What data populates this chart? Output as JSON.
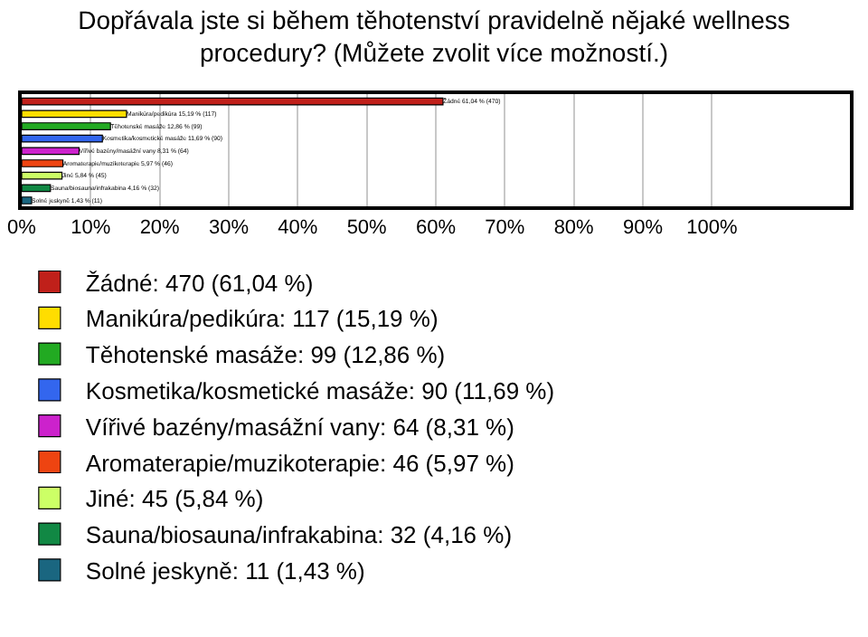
{
  "chart_data": {
    "type": "bar",
    "orientation": "horizontal",
    "title": "Dopřávala jste si během těhotenství pravidelně nějaké wellness\nprocedury? (Můžete zvolit více možností.)",
    "categories": [
      null,
      null,
      null,
      null,
      null,
      null,
      null,
      null,
      null
    ],
    "series": [
      {
        "name": "Žádné: 470 (61,04 %)",
        "color": "#c0201a",
        "values": [
          61.04,
          null,
          null,
          null,
          null,
          null,
          null,
          null,
          null
        ],
        "value_labels": [
          "Žádné 61,04 % (470)",
          null,
          null,
          null,
          null,
          null,
          null,
          null,
          null
        ]
      },
      {
        "name": "Manikúra/pedikúra: 117 (15,19 %)",
        "color": "#ffdd00",
        "values": [
          null,
          15.19,
          null,
          null,
          null,
          null,
          null,
          null,
          null
        ],
        "value_labels": [
          null,
          "Manikúra/pedikúra 15,19 % (117)",
          null,
          null,
          null,
          null,
          null,
          null,
          null
        ]
      },
      {
        "name": "Těhotenské masáže: 99 (12,86 %)",
        "color": "#22aa22",
        "values": [
          null,
          null,
          12.86,
          null,
          null,
          null,
          null,
          null,
          null
        ],
        "value_labels": [
          null,
          null,
          "Těhotenské masáže 12,86 % (99)",
          null,
          null,
          null,
          null,
          null,
          null
        ]
      },
      {
        "name": "Kosmetika/kosmetické masáže: 90 (11,69 %)",
        "color": "#3366ee",
        "values": [
          null,
          null,
          null,
          11.69,
          null,
          null,
          null,
          null,
          null
        ],
        "value_labels": [
          null,
          null,
          null,
          "Kosmetika/kosmetické masáže 11,69 % (90)",
          null,
          null,
          null,
          null,
          null
        ]
      },
      {
        "name": "Vířivé bazény/masážní vany: 64 (8,31 %)",
        "color": "#cc22cc",
        "values": [
          null,
          null,
          null,
          null,
          8.31,
          null,
          null,
          null,
          null
        ],
        "value_labels": [
          null,
          null,
          null,
          null,
          "Vířivé bazény/masážní vany 8,31 % (64)",
          null,
          null,
          null,
          null
        ]
      },
      {
        "name": "Aromaterapie/muzikoterapie: 46 (5,97 %)",
        "color": "#ee4411",
        "values": [
          null,
          null,
          null,
          null,
          null,
          5.97,
          null,
          null,
          null
        ],
        "value_labels": [
          null,
          null,
          null,
          null,
          null,
          "Aromaterapie/muzikoterapie 5,97 % (46)",
          null,
          null,
          null
        ]
      },
      {
        "name": "Jiné: 45 (5,84 %)",
        "color": "#ccff66",
        "values": [
          null,
          null,
          null,
          null,
          null,
          null,
          5.84,
          null,
          null
        ],
        "value_labels": [
          null,
          null,
          null,
          null,
          null,
          null,
          "Jiné 5,84 % (45)",
          null,
          null
        ]
      },
      {
        "name": "Sauna/biosauna/infrakabina: 32 (4,16 %)",
        "color": "#118844",
        "values": [
          null,
          null,
          null,
          null,
          null,
          null,
          null,
          4.16,
          null
        ],
        "value_labels": [
          null,
          null,
          null,
          null,
          null,
          null,
          null,
          "Sauna/biosauna/infrakabina 4,16 % (32)",
          null
        ]
      },
      {
        "name": "Solné jeskyně: 11 (1,43 %)",
        "color": "#1a6680",
        "values": [
          null,
          null,
          null,
          null,
          null,
          null,
          null,
          null,
          1.43
        ],
        "value_labels": [
          null,
          null,
          null,
          null,
          null,
          null,
          null,
          null,
          "Solné jeskyně 1,43 % (11)"
        ]
      }
    ],
    "xlim": [
      0,
      120
    ],
    "xticks": [
      {
        "value": 0,
        "label": "0%"
      },
      {
        "value": 10,
        "label": "10%"
      },
      {
        "value": 20,
        "label": "20%"
      },
      {
        "value": 30,
        "label": "30%"
      },
      {
        "value": 40,
        "label": "40%"
      },
      {
        "value": 50,
        "label": "50%"
      },
      {
        "value": 60,
        "label": "60%"
      },
      {
        "value": 70,
        "label": "70%"
      },
      {
        "value": 80,
        "label": "80%"
      },
      {
        "value": 90,
        "label": "90%"
      },
      {
        "value": 100,
        "label": "100%"
      }
    ],
    "tick_labels": "x",
    "grid": "x",
    "legend": "bottom"
  }
}
